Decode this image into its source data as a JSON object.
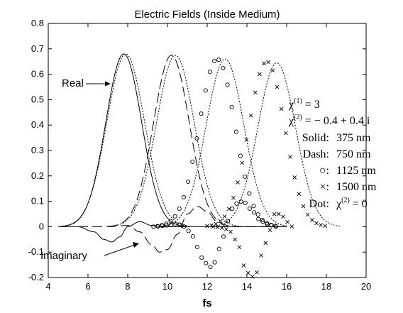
{
  "chart_data": {
    "type": "line",
    "title": "Electric Fields (Inside Medium)",
    "xlabel": "fs",
    "ylabel": "",
    "xlim": [
      4,
      20
    ],
    "ylim": [
      -0.2,
      0.8
    ],
    "xticks": [
      "4",
      "6",
      "8",
      "10",
      "12",
      "14",
      "16",
      "18",
      "20"
    ],
    "yticks": [
      "-0.2",
      "-0.1",
      "0",
      "0.1",
      "0.2",
      "0.3",
      "0.4",
      "0.5",
      "0.6",
      "0.7",
      "0.8"
    ],
    "grid": false,
    "annotations": {
      "real": "Real",
      "imaginary": "Imaginary",
      "chi1_sym": "χ",
      "chi1_sup": "(1)",
      "chi1_val": " = 3",
      "chi2_sym": "χ",
      "chi2_sup": "(2)",
      "chi2_val": " = − 0.4 + 0.4 i",
      "solid_key": "Solid:",
      "solid_val": "375 nm",
      "dash_key": "Dash:",
      "dash_val": "750 nm",
      "circle_key": "○:",
      "circle_val": "1125 nm",
      "cross_key": "×:",
      "cross_val": "1500 nm",
      "dot_key": "Dot:",
      "dot_chi_sym": "χ",
      "dot_chi_sup": "(2)",
      "dot_chi_val": " = 0"
    },
    "series": [
      {
        "style": "solid",
        "real": {
          "peak_x": 7.8,
          "peak_y": 0.68,
          "width": 0.9
        },
        "imag": [
          [
            4.5,
            0
          ],
          [
            5.5,
            0
          ],
          [
            6.3,
            -0.02
          ],
          [
            6.8,
            -0.05
          ],
          [
            7.2,
            -0.06
          ],
          [
            7.6,
            -0.04
          ],
          [
            8.0,
            0.0
          ],
          [
            8.6,
            0.02
          ],
          [
            9.2,
            0.005
          ],
          [
            9.7,
            0
          ],
          [
            11,
            0
          ],
          [
            13,
            0
          ],
          [
            16,
            0
          ]
        ]
      },
      {
        "style": "dash",
        "real": {
          "peak_x": 10.2,
          "peak_y": 0.675,
          "width": 0.9
        },
        "imag": [
          [
            5.5,
            0
          ],
          [
            7,
            0
          ],
          [
            8,
            0.005
          ],
          [
            8.6,
            -0.02
          ],
          [
            9.2,
            -0.07
          ],
          [
            9.6,
            -0.1
          ],
          [
            10.0,
            -0.09
          ],
          [
            10.5,
            -0.03
          ],
          [
            11.0,
            0.05
          ],
          [
            11.5,
            0.08
          ],
          [
            12.0,
            0.06
          ],
          [
            12.5,
            0.02
          ],
          [
            13,
            0
          ],
          [
            16,
            0
          ]
        ]
      },
      {
        "style": "circle",
        "real": {
          "peak_x": 12.5,
          "peak_y": 0.66,
          "width": 0.9
        },
        "imag": [
          [
            9.3,
            0
          ],
          [
            10.0,
            0.005
          ],
          [
            10.5,
            0.01
          ],
          [
            10.9,
            0
          ],
          [
            11.2,
            -0.03
          ],
          [
            11.5,
            -0.08
          ],
          [
            11.8,
            -0.13
          ],
          [
            12.1,
            -0.16
          ],
          [
            12.4,
            -0.14
          ],
          [
            12.7,
            -0.07
          ],
          [
            13.0,
            0.02
          ],
          [
            13.4,
            0.09
          ],
          [
            13.8,
            0.1
          ],
          [
            14.2,
            0.07
          ],
          [
            14.6,
            0.03
          ],
          [
            15.0,
            0.01
          ],
          [
            15.5,
            0
          ]
        ]
      },
      {
        "style": "cross",
        "real": {
          "peak_x": 15.0,
          "peak_y": 0.65,
          "width": 0.9
        },
        "imag": [
          [
            12.3,
            0
          ],
          [
            12.8,
            -0.005
          ],
          [
            13.2,
            -0.02
          ],
          [
            13.6,
            -0.08
          ],
          [
            13.9,
            -0.16
          ],
          [
            14.2,
            -0.2
          ],
          [
            14.5,
            -0.18
          ],
          [
            14.8,
            -0.1
          ],
          [
            15.1,
            -0.02
          ],
          [
            15.4,
            0.05
          ],
          [
            15.7,
            0.05
          ],
          [
            16.0,
            0.02
          ],
          [
            16.3,
            0
          ]
        ]
      }
    ],
    "dot_reference": [
      {
        "peak_x": 7.9,
        "peak_y": 0.68,
        "width": 0.95
      },
      {
        "peak_x": 10.4,
        "peak_y": 0.675,
        "width": 0.95
      },
      {
        "peak_x": 12.9,
        "peak_y": 0.66,
        "width": 0.95
      },
      {
        "peak_x": 15.5,
        "peak_y": 0.645,
        "width": 0.95
      }
    ],
    "colors": {
      "line": "#000000",
      "background": "#ffffff"
    }
  }
}
